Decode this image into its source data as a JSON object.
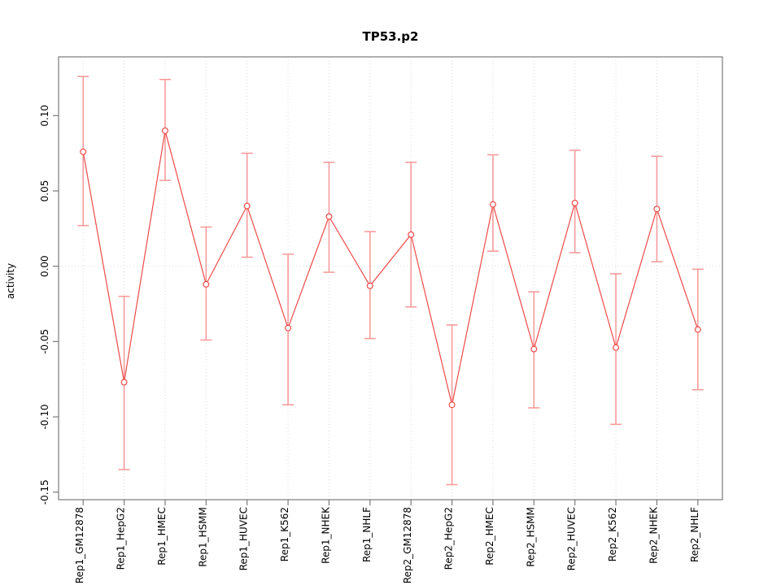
{
  "chart_data": {
    "type": "line",
    "title": "TP53.p2",
    "xlabel": "",
    "ylabel": "activity",
    "legend": "none",
    "grid": "vertical dotted gridline per category; horizontal dotted line at y=0",
    "categories": [
      "Rep1_GM12878",
      "Rep1_HepG2",
      "Rep1_HMEC",
      "Rep1_HSMM",
      "Rep1_HUVEC",
      "Rep1_K562",
      "Rep1_NHEK",
      "Rep1_NHLF",
      "Rep2_GM12878",
      "Rep2_HepG2",
      "Rep2_HMEC",
      "Rep2_HSMM",
      "Rep2_HUVEC",
      "Rep2_K562",
      "Rep2_NHEK",
      "Rep2_NHLF"
    ],
    "series": [
      {
        "name": "activity",
        "marker": "open-circle",
        "values": [
          0.076,
          -0.077,
          0.09,
          -0.012,
          0.04,
          -0.041,
          0.033,
          -0.013,
          0.021,
          -0.092,
          0.041,
          -0.055,
          0.042,
          -0.054,
          0.038,
          -0.042
        ],
        "error_upper": [
          0.126,
          -0.02,
          0.124,
          0.026,
          0.075,
          0.008,
          0.069,
          0.023,
          0.069,
          -0.039,
          0.074,
          -0.017,
          0.077,
          -0.005,
          0.073,
          -0.002
        ],
        "error_lower": [
          0.027,
          -0.135,
          0.057,
          -0.049,
          0.006,
          -0.092,
          -0.004,
          -0.048,
          -0.027,
          -0.145,
          0.01,
          -0.094,
          0.009,
          -0.105,
          0.003,
          -0.082
        ]
      }
    ],
    "ytick_labels": [
      "0.10",
      "0.05",
      "0.00",
      "-0.05",
      "-0.10",
      "-0.15"
    ],
    "ytick_values": [
      0.1,
      0.05,
      0.0,
      -0.05,
      -0.1,
      -0.15
    ],
    "ylim": [
      -0.155,
      0.139
    ],
    "zero_line": 0.0,
    "colors": {
      "line": "#ee4a48",
      "point": "#ee4a48",
      "error_bar": "#f89c9c",
      "gridline": "#d9d9d9",
      "frame": "#7a7a7a",
      "text": "#000000",
      "background": "#ffffff"
    }
  }
}
